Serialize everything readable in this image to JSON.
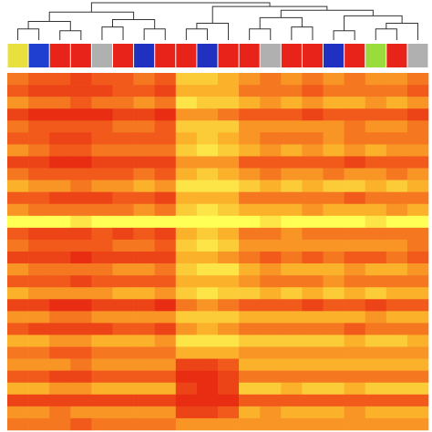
{
  "chart_data": {
    "type": "heatmap",
    "zlim": [
      0,
      9
    ],
    "colorscale": [
      "#e3170f",
      "#f25a1b",
      "#fbb22a",
      "#ffff55"
    ],
    "column_colors": [
      "#e8e03c",
      "#1f3fd0",
      "#e8231a",
      "#e8231a",
      "#b0b0b0",
      "#e8231a",
      "#2030c0",
      "#e8231a",
      "#e8231a",
      "#2030c0",
      "#e8231a",
      "#e8231a",
      "#b0b0b0",
      "#e8231a",
      "#e8231a",
      "#2030c0",
      "#e8231a",
      "#9adc3c",
      "#e8231a",
      "#b0b0b0"
    ],
    "dendrogram_ylim": [
      0,
      1
    ],
    "dendrogram": [
      [
        0,
        1,
        0.3
      ],
      [
        2,
        3,
        0.25
      ],
      [
        20,
        21,
        0.5
      ],
      [
        4,
        5,
        0.35
      ],
      [
        6,
        7,
        0.3
      ],
      [
        23,
        24,
        0.55
      ],
      [
        22,
        25,
        0.75
      ],
      [
        8,
        9,
        0.3
      ],
      [
        27,
        10,
        0.45
      ],
      [
        11,
        12,
        0.3
      ],
      [
        13,
        14,
        0.35
      ],
      [
        29,
        30,
        0.6
      ],
      [
        15,
        16,
        0.25
      ],
      [
        17,
        18,
        0.3
      ],
      [
        33,
        19,
        0.45
      ],
      [
        32,
        34,
        0.65
      ],
      [
        31,
        35,
        0.8
      ],
      [
        28,
        36,
        0.9
      ],
      [
        26,
        37,
        1.0
      ]
    ],
    "z": [
      [
        4,
        3,
        3,
        2,
        3,
        3,
        4,
        3,
        7,
        7,
        6,
        5,
        4,
        5,
        4,
        5,
        4,
        5,
        5,
        4
      ],
      [
        3,
        2,
        2,
        2,
        2,
        3,
        3,
        2,
        6,
        6,
        6,
        4,
        4,
        4,
        3,
        4,
        4,
        4,
        4,
        3
      ],
      [
        5,
        4,
        4,
        3,
        4,
        4,
        5,
        4,
        8,
        7,
        7,
        6,
        5,
        6,
        5,
        6,
        6,
        5,
        6,
        5
      ],
      [
        2,
        1,
        1,
        1,
        1,
        2,
        2,
        1,
        5,
        5,
        4,
        3,
        3,
        3,
        2,
        3,
        3,
        3,
        3,
        2
      ],
      [
        4,
        3,
        3,
        3,
        3,
        4,
        4,
        3,
        7,
        7,
        7,
        5,
        5,
        5,
        5,
        5,
        4,
        5,
        5,
        4
      ],
      [
        3,
        3,
        2,
        2,
        3,
        3,
        3,
        3,
        6,
        7,
        6,
        5,
        4,
        4,
        4,
        5,
        4,
        4,
        4,
        4
      ],
      [
        5,
        4,
        3,
        3,
        4,
        4,
        4,
        4,
        7,
        8,
        7,
        6,
        5,
        6,
        5,
        6,
        5,
        6,
        5,
        5
      ],
      [
        2,
        2,
        1,
        1,
        2,
        2,
        2,
        2,
        5,
        5,
        5,
        3,
        3,
        3,
        3,
        3,
        2,
        3,
        3,
        3
      ],
      [
        4,
        3,
        3,
        3,
        3,
        3,
        4,
        3,
        6,
        7,
        6,
        5,
        4,
        5,
        5,
        4,
        5,
        5,
        4,
        5
      ],
      [
        6,
        5,
        5,
        4,
        5,
        5,
        6,
        5,
        8,
        8,
        8,
        7,
        6,
        7,
        6,
        7,
        7,
        6,
        7,
        6
      ],
      [
        3,
        3,
        2,
        2,
        2,
        3,
        3,
        2,
        6,
        6,
        6,
        4,
        4,
        4,
        4,
        4,
        3,
        4,
        4,
        4
      ],
      [
        5,
        4,
        4,
        4,
        4,
        4,
        5,
        4,
        7,
        8,
        7,
        6,
        6,
        6,
        5,
        6,
        6,
        6,
        5,
        6
      ],
      [
        9,
        9,
        9,
        8,
        9,
        9,
        9,
        9,
        9,
        9,
        9,
        9,
        8,
        9,
        9,
        9,
        9,
        8,
        9,
        9
      ],
      [
        3,
        2,
        2,
        2,
        3,
        2,
        3,
        2,
        6,
        7,
        6,
        4,
        4,
        5,
        4,
        4,
        4,
        4,
        4,
        4
      ],
      [
        4,
        3,
        3,
        3,
        3,
        4,
        4,
        3,
        7,
        8,
        7,
        5,
        5,
        5,
        5,
        5,
        5,
        5,
        5,
        4
      ],
      [
        2,
        2,
        2,
        1,
        2,
        2,
        2,
        2,
        6,
        6,
        5,
        4,
        3,
        4,
        3,
        4,
        3,
        3,
        4,
        3
      ],
      [
        5,
        4,
        4,
        4,
        4,
        5,
        5,
        4,
        7,
        8,
        8,
        6,
        5,
        6,
        6,
        6,
        5,
        6,
        6,
        5
      ],
      [
        3,
        3,
        3,
        2,
        3,
        3,
        3,
        3,
        6,
        6,
        6,
        5,
        4,
        4,
        4,
        5,
        4,
        4,
        4,
        4
      ],
      [
        6,
        5,
        5,
        5,
        5,
        6,
        6,
        5,
        7,
        8,
        7,
        7,
        6,
        7,
        6,
        7,
        6,
        7,
        6,
        6
      ],
      [
        2,
        2,
        1,
        1,
        2,
        2,
        2,
        1,
        4,
        5,
        4,
        3,
        3,
        3,
        2,
        3,
        3,
        2,
        3,
        3
      ],
      [
        5,
        5,
        4,
        4,
        5,
        5,
        5,
        5,
        7,
        7,
        7,
        6,
        6,
        6,
        6,
        6,
        6,
        5,
        6,
        6
      ],
      [
        3,
        2,
        2,
        2,
        2,
        3,
        3,
        2,
        5,
        6,
        5,
        4,
        4,
        4,
        4,
        4,
        3,
        4,
        4,
        4
      ],
      [
        6,
        6,
        5,
        5,
        6,
        6,
        6,
        5,
        8,
        8,
        8,
        7,
        7,
        7,
        7,
        7,
        6,
        7,
        7,
        6
      ],
      [
        4,
        4,
        3,
        3,
        4,
        4,
        4,
        4,
        6,
        6,
        6,
        5,
        5,
        5,
        5,
        5,
        5,
        5,
        5,
        5
      ],
      [
        5,
        5,
        5,
        4,
        5,
        5,
        5,
        5,
        2,
        2,
        3,
        6,
        6,
        6,
        6,
        6,
        6,
        6,
        6,
        6
      ],
      [
        3,
        3,
        2,
        2,
        3,
        3,
        3,
        3,
        1,
        1,
        2,
        4,
        4,
        4,
        4,
        4,
        4,
        4,
        4,
        4
      ],
      [
        6,
        6,
        5,
        5,
        6,
        6,
        6,
        6,
        2,
        1,
        2,
        7,
        7,
        6,
        7,
        7,
        6,
        7,
        7,
        7
      ],
      [
        2,
        2,
        2,
        2,
        2,
        2,
        2,
        2,
        1,
        1,
        1,
        3,
        3,
        3,
        3,
        3,
        3,
        3,
        3,
        3
      ],
      [
        5,
        5,
        4,
        5,
        5,
        5,
        5,
        5,
        2,
        2,
        3,
        6,
        5,
        6,
        6,
        6,
        5,
        6,
        6,
        6
      ],
      [
        4,
        4,
        4,
        3,
        4,
        4,
        4,
        4,
        5,
        5,
        5,
        5,
        5,
        5,
        5,
        5,
        5,
        5,
        5,
        5
      ]
    ]
  }
}
